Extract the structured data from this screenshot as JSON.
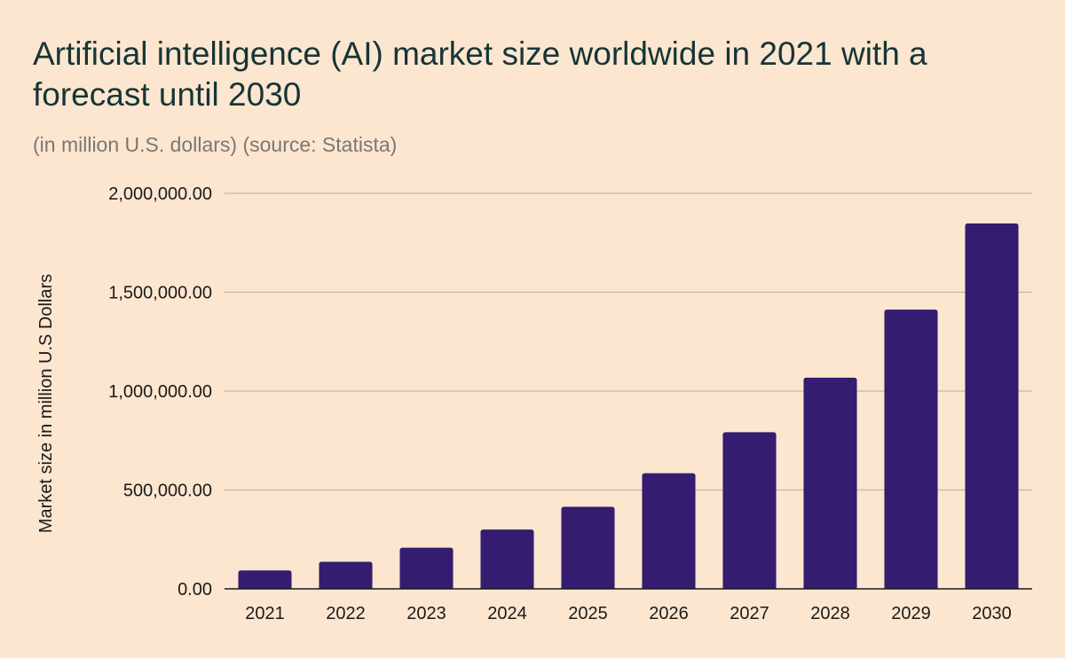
{
  "colors": {
    "background": "#fde6cf",
    "bar": "#341c70",
    "gridline": "#c4b8a8",
    "baseline": "#1a1a1a",
    "title": "#163537",
    "subtitle": "#7a7775"
  },
  "chart_data": {
    "type": "bar",
    "title": "Artificial intelligence (AI) market size worldwide in 2021 with a forecast until 2030",
    "subtitle": "(in million U.S. dollars) (source: Statista)",
    "xlabel": "",
    "ylabel": "Market size in million U.S Dollars",
    "categories": [
      "2021",
      "2022",
      "2023",
      "2024",
      "2025",
      "2026",
      "2027",
      "2028",
      "2029",
      "2030"
    ],
    "values": [
      93270,
      137000,
      207900,
      299640,
      414540,
      584410,
      792280,
      1067900,
      1411830,
      1847500
    ],
    "ylim": [
      0,
      2000000
    ],
    "yticks": [
      0,
      500000,
      1000000,
      1500000,
      2000000
    ],
    "ytick_labels": [
      "0.00",
      "500,000.00",
      "1,000,000.00",
      "1,500,000.00",
      "2,000,000.00"
    ],
    "grid": true,
    "legend": "none"
  }
}
